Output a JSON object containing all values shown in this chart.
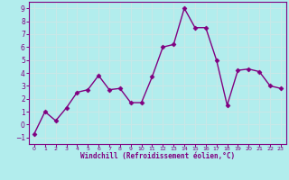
{
  "x": [
    0,
    1,
    2,
    3,
    4,
    5,
    6,
    7,
    8,
    9,
    10,
    11,
    12,
    13,
    14,
    15,
    16,
    17,
    18,
    19,
    20,
    21,
    22,
    23
  ],
  "y": [
    -0.7,
    1.0,
    0.3,
    1.3,
    2.5,
    2.7,
    3.8,
    2.7,
    2.8,
    1.7,
    1.7,
    3.7,
    6.0,
    6.2,
    9.0,
    7.5,
    7.5,
    5.0,
    1.5,
    4.2,
    4.3,
    4.1,
    3.0,
    2.8
  ],
  "line_color": "#800080",
  "marker_color": "#800080",
  "bg_color": "#b2eded",
  "grid_color": "#c8e8e8",
  "xlabel": "Windchill (Refroidissement éolien,°C)",
  "xlim": [
    -0.5,
    23.5
  ],
  "ylim": [
    -1.5,
    9.5
  ],
  "yticks": [
    -1,
    0,
    1,
    2,
    3,
    4,
    5,
    6,
    7,
    8,
    9
  ],
  "xticks": [
    0,
    1,
    2,
    3,
    4,
    5,
    6,
    7,
    8,
    9,
    10,
    11,
    12,
    13,
    14,
    15,
    16,
    17,
    18,
    19,
    20,
    21,
    22,
    23
  ],
  "label_color": "#800080",
  "tick_label_color": "#800080",
  "spine_color": "#800080",
  "line_width": 1.0,
  "marker_size": 2.5
}
